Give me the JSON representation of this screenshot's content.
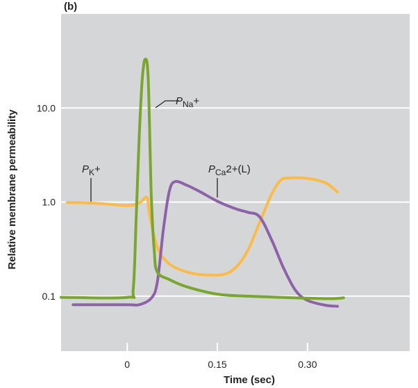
{
  "panel_label": "(b)",
  "chart_data": {
    "type": "line",
    "title": "",
    "xlabel": "Time (sec)",
    "ylabel": "Relative membrane permeability",
    "y_scale": "log",
    "grid": true,
    "xlim": [
      -0.11,
      0.47
    ],
    "ylim": [
      0.026,
      100
    ],
    "x_ticks": [
      0,
      0.15,
      0.3
    ],
    "x_tick_labels": [
      "0",
      "0.15",
      "0.30"
    ],
    "y_ticks": [
      0.1,
      1.0,
      10.0
    ],
    "y_tick_labels": [
      "0.1",
      "1.0",
      "10.0"
    ],
    "series": [
      {
        "name": "P_Na+",
        "label_main": "P",
        "label_sub": "Na",
        "label_sup": "+",
        "color": "#7aa630",
        "points": [
          [
            -0.11,
            0.097
          ],
          [
            0.0,
            0.097
          ],
          [
            0.01,
            0.12
          ],
          [
            0.015,
            0.7
          ],
          [
            0.02,
            5
          ],
          [
            0.025,
            20
          ],
          [
            0.03,
            33
          ],
          [
            0.035,
            20
          ],
          [
            0.04,
            1.2
          ],
          [
            0.045,
            0.3
          ],
          [
            0.05,
            0.18
          ],
          [
            0.07,
            0.15
          ],
          [
            0.1,
            0.125
          ],
          [
            0.15,
            0.105
          ],
          [
            0.2,
            0.1
          ],
          [
            0.3,
            0.095
          ],
          [
            0.34,
            0.094
          ],
          [
            0.36,
            0.096
          ]
        ]
      },
      {
        "name": "P_K+",
        "label_main": "P",
        "label_sub": "K",
        "label_sup": "+",
        "color": "#fbbb48",
        "points": [
          [
            -0.1,
            0.99
          ],
          [
            -0.05,
            0.97
          ],
          [
            0.0,
            0.92
          ],
          [
            0.02,
            0.98
          ],
          [
            0.033,
            1.12
          ],
          [
            0.037,
            0.75
          ],
          [
            0.05,
            0.33
          ],
          [
            0.07,
            0.22
          ],
          [
            0.1,
            0.18
          ],
          [
            0.13,
            0.168
          ],
          [
            0.16,
            0.17
          ],
          [
            0.18,
            0.2
          ],
          [
            0.2,
            0.3
          ],
          [
            0.22,
            0.6
          ],
          [
            0.24,
            1.2
          ],
          [
            0.255,
            1.7
          ],
          [
            0.27,
            1.8
          ],
          [
            0.3,
            1.78
          ],
          [
            0.33,
            1.6
          ],
          [
            0.35,
            1.28
          ]
        ]
      },
      {
        "name": "P_Ca2+(L)",
        "label_main": "P",
        "label_sub": "Ca",
        "label_sup": "2+(L)",
        "color": "#8e62a8",
        "points": [
          [
            -0.09,
            0.081
          ],
          [
            0.0,
            0.081
          ],
          [
            0.02,
            0.081
          ],
          [
            0.04,
            0.095
          ],
          [
            0.05,
            0.14
          ],
          [
            0.06,
            0.5
          ],
          [
            0.07,
            1.3
          ],
          [
            0.08,
            1.65
          ],
          [
            0.1,
            1.5
          ],
          [
            0.12,
            1.3
          ],
          [
            0.15,
            1.02
          ],
          [
            0.18,
            0.85
          ],
          [
            0.2,
            0.78
          ],
          [
            0.22,
            0.7
          ],
          [
            0.24,
            0.4
          ],
          [
            0.26,
            0.2
          ],
          [
            0.28,
            0.115
          ],
          [
            0.3,
            0.09
          ],
          [
            0.33,
            0.08
          ],
          [
            0.35,
            0.078
          ]
        ]
      }
    ]
  }
}
